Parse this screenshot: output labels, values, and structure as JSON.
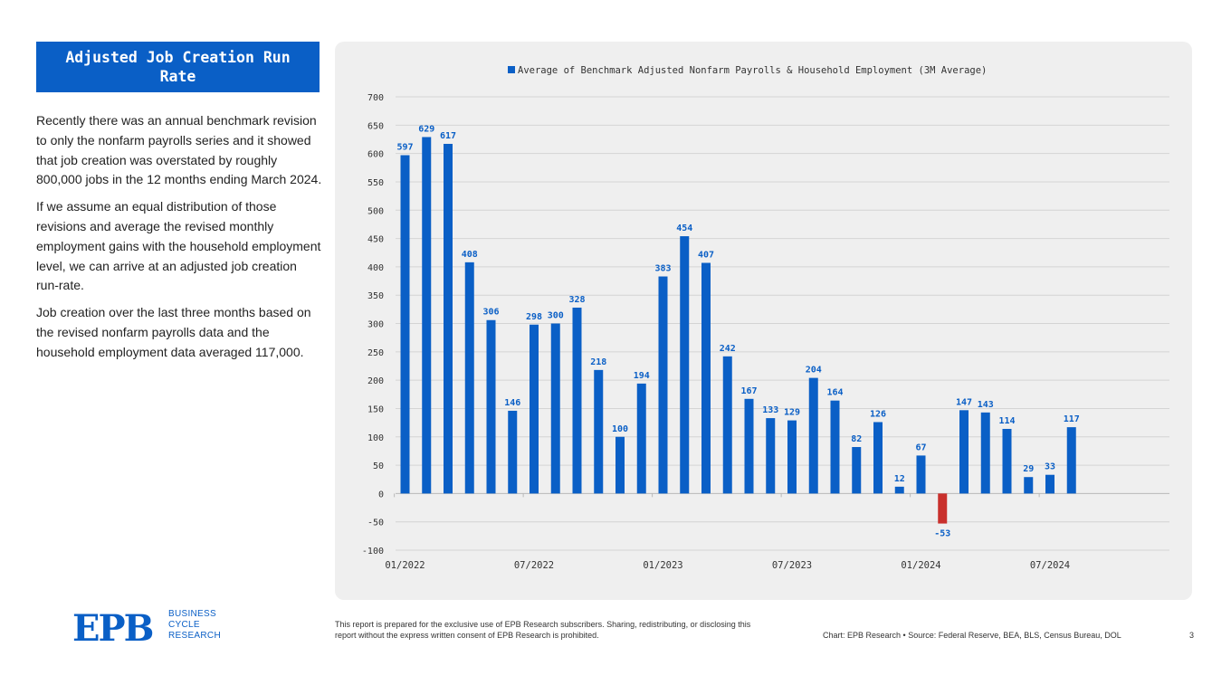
{
  "header": {
    "title": "Adjusted Job Creation Run Rate"
  },
  "body": {
    "paragraphs": [
      "Recently there was an annual benchmark revision to only the nonfarm payrolls series and it showed that job creation was overstated by roughly 800,000 jobs in the 12 months ending March 2024.",
      "If we assume an equal distribution of those revisions and average the revised monthly employment gains with the household employment level, we can arrive at an adjusted job creation run-rate.",
      "Job creation over the last three months based on the revised nonfarm payrolls data and the household employment data averaged 117,000."
    ]
  },
  "footer": {
    "brand": {
      "logo_text": "EPB",
      "line1": "BUSINESS",
      "line2": "CYCLE",
      "line3": "RESEARCH"
    },
    "disclaimer": "This report is prepared for the exclusive use of EPB Research subscribers. Sharing, redistributing, or disclosing this report without the express written consent of EPB Research is prohibited.",
    "source": "Chart: EPB Research  •  Source: Federal Reserve, BEA, BLS, Census Bureau, DOL",
    "page_number": "3"
  },
  "chart_data": {
    "type": "bar",
    "title": "",
    "xlabel": "",
    "ylabel": "",
    "series": [
      {
        "name": "Average of Benchmark Adjusted Nonfarm Payrolls & Household Employment (3M Average)",
        "values": [
          597,
          629,
          617,
          408,
          306,
          146,
          298,
          300,
          328,
          218,
          100,
          194,
          383,
          454,
          407,
          242,
          167,
          133,
          129,
          204,
          164,
          82,
          126,
          12,
          67,
          -53,
          147,
          143,
          114,
          29,
          33,
          117
        ]
      }
    ],
    "categories": [
      "01/2022",
      "02/2022",
      "03/2022",
      "04/2022",
      "05/2022",
      "06/2022",
      "07/2022",
      "08/2022",
      "09/2022",
      "10/2022",
      "11/2022",
      "12/2022",
      "01/2023",
      "02/2023",
      "03/2023",
      "04/2023",
      "05/2023",
      "06/2023",
      "07/2023",
      "08/2023",
      "09/2023",
      "10/2023",
      "11/2023",
      "12/2023",
      "01/2024",
      "02/2024",
      "03/2024",
      "04/2024",
      "05/2024",
      "06/2024",
      "07/2024",
      "08/2024"
    ],
    "x_tick_labels": [
      "01/2022",
      "07/2022",
      "01/2023",
      "07/2023",
      "01/2024",
      "07/2024"
    ],
    "y_tick_labels": [
      "-100",
      "-50",
      "0",
      "50",
      "100",
      "150",
      "200",
      "250",
      "300",
      "350",
      "400",
      "450",
      "500",
      "550",
      "600",
      "650",
      "700"
    ],
    "ylim": [
      -100,
      700
    ],
    "grid": true,
    "legend": "top-center",
    "colors": {
      "positive": "#0a5fc6",
      "negative": "#c9302c",
      "grid": "#d4d4d4",
      "label": "#0a5fc6"
    }
  }
}
